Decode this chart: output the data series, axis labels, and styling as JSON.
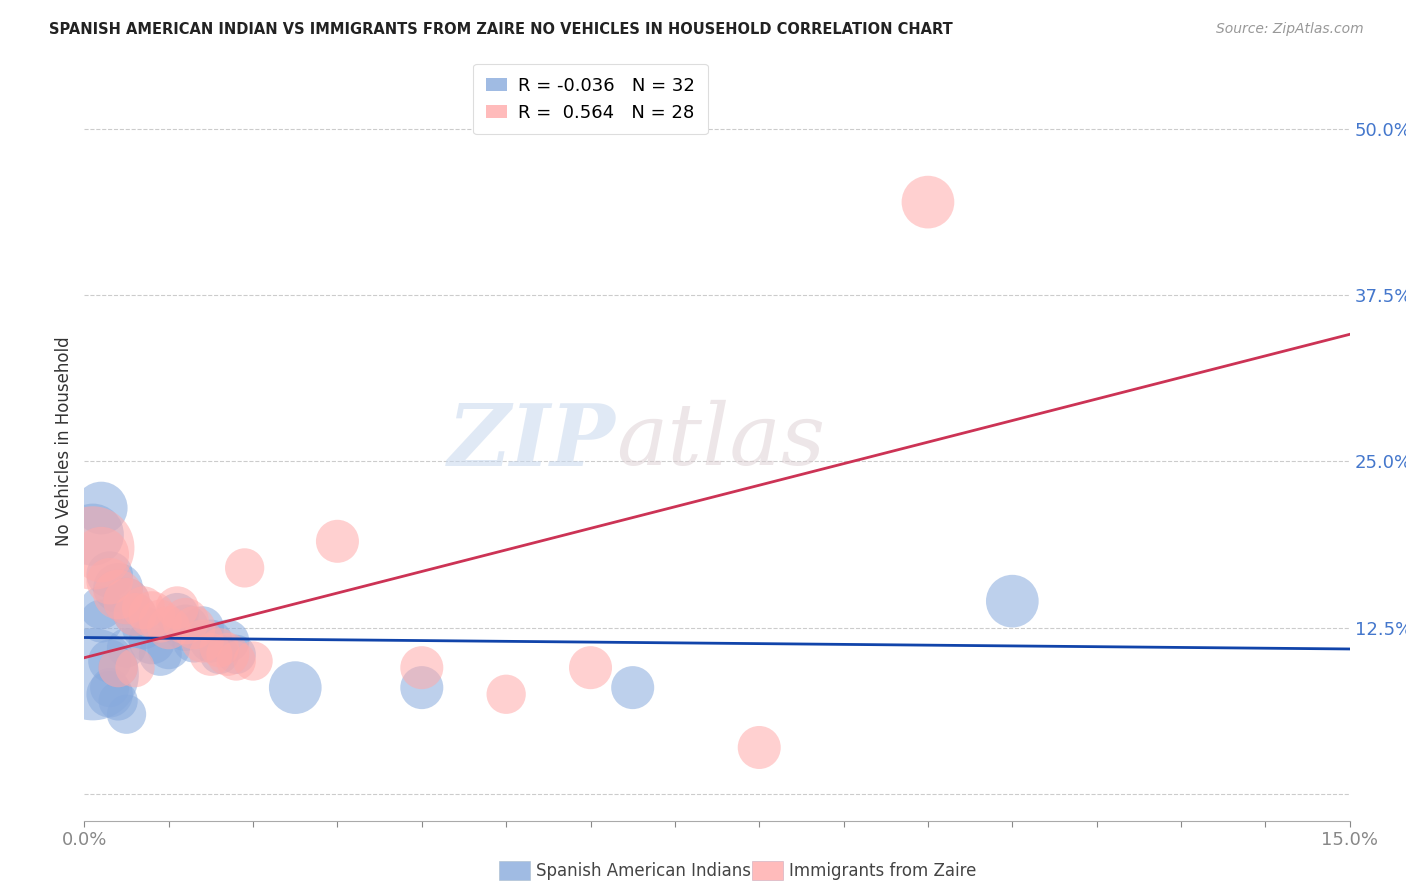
{
  "title": "SPANISH AMERICAN INDIAN VS IMMIGRANTS FROM ZAIRE NO VEHICLES IN HOUSEHOLD CORRELATION CHART",
  "source": "Source: ZipAtlas.com",
  "xlabel_blue": "Spanish American Indians",
  "xlabel_pink": "Immigrants from Zaire",
  "ylabel": "No Vehicles in Household",
  "xlim": [
    0.0,
    0.15
  ],
  "ylim": [
    -0.02,
    0.55
  ],
  "yticks": [
    0.0,
    0.125,
    0.25,
    0.375,
    0.5
  ],
  "ytick_labels": [
    "",
    "12.5%",
    "25.0%",
    "37.5%",
    "50.0%"
  ],
  "blue_R": -0.036,
  "blue_N": 32,
  "pink_R": 0.564,
  "pink_N": 28,
  "blue_color": "#88AADD",
  "pink_color": "#FFAAAA",
  "blue_line_color": "#1144AA",
  "pink_line_color": "#CC3355",
  "watermark_zip": "ZIP",
  "watermark_atlas": "atlas",
  "blue_scatter_x": [
    0.001,
    0.002,
    0.003,
    0.004,
    0.005,
    0.006,
    0.007,
    0.008,
    0.009,
    0.01,
    0.011,
    0.012,
    0.013,
    0.014,
    0.015,
    0.016,
    0.017,
    0.018,
    0.002,
    0.003,
    0.004,
    0.005,
    0.001,
    0.003,
    0.002,
    0.004,
    0.003,
    0.005,
    0.11,
    0.065,
    0.04,
    0.025
  ],
  "blue_scatter_y": [
    0.195,
    0.215,
    0.165,
    0.155,
    0.145,
    0.135,
    0.125,
    0.115,
    0.105,
    0.11,
    0.135,
    0.125,
    0.115,
    0.125,
    0.115,
    0.105,
    0.115,
    0.105,
    0.14,
    0.08,
    0.07,
    0.06,
    0.09,
    0.075,
    0.13,
    0.095,
    0.1,
    0.11,
    0.145,
    0.08,
    0.08,
    0.08
  ],
  "blue_scatter_s": [
    25,
    18,
    14,
    16,
    14,
    12,
    12,
    14,
    12,
    12,
    12,
    14,
    12,
    12,
    12,
    10,
    12,
    10,
    12,
    10,
    10,
    10,
    55,
    14,
    12,
    10,
    12,
    10,
    18,
    12,
    12,
    18
  ],
  "pink_scatter_x": [
    0.001,
    0.002,
    0.003,
    0.004,
    0.005,
    0.006,
    0.007,
    0.008,
    0.009,
    0.01,
    0.011,
    0.012,
    0.013,
    0.014,
    0.015,
    0.016,
    0.017,
    0.018,
    0.019,
    0.02,
    0.004,
    0.006,
    0.06,
    0.03,
    0.04,
    0.05,
    0.1,
    0.08
  ],
  "pink_scatter_y": [
    0.185,
    0.18,
    0.16,
    0.15,
    0.145,
    0.135,
    0.14,
    0.135,
    0.13,
    0.125,
    0.14,
    0.13,
    0.125,
    0.115,
    0.105,
    0.11,
    0.105,
    0.1,
    0.17,
    0.1,
    0.095,
    0.095,
    0.095,
    0.19,
    0.095,
    0.075,
    0.445,
    0.035
  ],
  "pink_scatter_s": [
    45,
    20,
    14,
    16,
    14,
    12,
    12,
    14,
    12,
    12,
    12,
    14,
    12,
    12,
    12,
    10,
    12,
    10,
    10,
    10,
    10,
    10,
    12,
    12,
    12,
    10,
    18,
    12
  ]
}
